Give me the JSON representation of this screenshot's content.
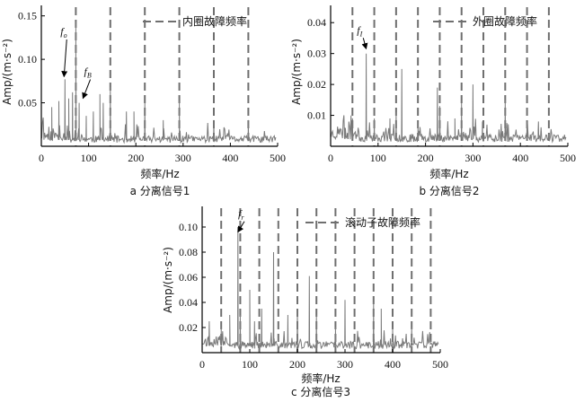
{
  "colors": {
    "signal": "#7a7a7a",
    "marker": "#6f6f6f",
    "axis": "#000000",
    "background": "#ffffff"
  },
  "chart_data": [
    {
      "id": "a",
      "type": "line",
      "caption": "a 分离信号1",
      "xlabel": "频率/Hz",
      "ylabel": "Amp/(m·s⁻²)",
      "xlim": [
        0,
        500
      ],
      "ylim": [
        0,
        0.16
      ],
      "xticks": [
        0,
        100,
        200,
        300,
        400,
        500
      ],
      "yticks": [
        0.05,
        0.1,
        0.15
      ],
      "ytick_labels": [
        "0.05",
        "0.10",
        "0.15"
      ],
      "legend": {
        "label": "内圈故障频率",
        "position": "top-right"
      },
      "fault_lines": [
        73,
        146,
        219,
        292,
        365,
        438
      ],
      "noise_level": 0.012,
      "noise_seed": 11,
      "peaks": [
        {
          "x": 22,
          "y": 0.045
        },
        {
          "x": 37,
          "y": 0.052
        },
        {
          "x": 50,
          "y": 0.077
        },
        {
          "x": 58,
          "y": 0.055
        },
        {
          "x": 66,
          "y": 0.062
        },
        {
          "x": 73,
          "y": 0.143
        },
        {
          "x": 80,
          "y": 0.05
        },
        {
          "x": 95,
          "y": 0.035
        },
        {
          "x": 110,
          "y": 0.04
        },
        {
          "x": 124,
          "y": 0.06
        },
        {
          "x": 131,
          "y": 0.05
        },
        {
          "x": 146,
          "y": 0.068
        },
        {
          "x": 180,
          "y": 0.04
        },
        {
          "x": 196,
          "y": 0.04
        },
        {
          "x": 219,
          "y": 0.05
        },
        {
          "x": 258,
          "y": 0.03
        },
        {
          "x": 292,
          "y": 0.052
        },
        {
          "x": 365,
          "y": 0.03
        },
        {
          "x": 438,
          "y": 0.03
        }
      ],
      "annotations": [
        {
          "text": "f",
          "sub": "o",
          "x": 48,
          "y": 0.128,
          "ax": 48,
          "ay": 0.08
        },
        {
          "text": "f",
          "sub": "B",
          "x": 98,
          "y": 0.082,
          "ax": 88,
          "ay": 0.055
        }
      ]
    },
    {
      "id": "b",
      "type": "line",
      "caption": "b 分离信号2",
      "xlabel": "频率/Hz",
      "ylabel": "Amp/(m·s⁻²)",
      "xlim": [
        0,
        500
      ],
      "ylim": [
        0,
        0.045
      ],
      "xticks": [
        0,
        100,
        200,
        300,
        400,
        500
      ],
      "yticks": [
        0.01,
        0.02,
        0.03,
        0.04
      ],
      "ytick_labels": [
        "0.01",
        "0.02",
        "0.03",
        "0.04"
      ],
      "legend": {
        "label": "外圈故障频率",
        "position": "top-right"
      },
      "fault_lines": [
        46,
        92,
        138,
        184,
        230,
        276,
        322,
        368,
        414,
        460
      ],
      "noise_level": 0.004,
      "noise_seed": 23,
      "peaks": [
        {
          "x": 30,
          "y": 0.006
        },
        {
          "x": 46,
          "y": 0.009
        },
        {
          "x": 75,
          "y": 0.03
        },
        {
          "x": 92,
          "y": 0.009
        },
        {
          "x": 125,
          "y": 0.009
        },
        {
          "x": 138,
          "y": 0.011
        },
        {
          "x": 150,
          "y": 0.025
        },
        {
          "x": 184,
          "y": 0.008
        },
        {
          "x": 225,
          "y": 0.019
        },
        {
          "x": 230,
          "y": 0.013
        },
        {
          "x": 262,
          "y": 0.009
        },
        {
          "x": 276,
          "y": 0.014
        },
        {
          "x": 300,
          "y": 0.02
        },
        {
          "x": 320,
          "y": 0.008
        },
        {
          "x": 368,
          "y": 0.015
        },
        {
          "x": 414,
          "y": 0.008
        },
        {
          "x": 438,
          "y": 0.008
        },
        {
          "x": 460,
          "y": 0.004
        }
      ],
      "annotations": [
        {
          "text": "f",
          "sub": "I",
          "x": 63,
          "y": 0.0365,
          "ax": 75,
          "ay": 0.0315
        }
      ]
    },
    {
      "id": "c",
      "type": "line",
      "caption": "c 分离信号3",
      "xlabel": "频率/Hz",
      "ylabel": "Amp/(m·s⁻²)",
      "xlim": [
        0,
        500
      ],
      "ylim": [
        0,
        0.115
      ],
      "xticks": [
        0,
        100,
        200,
        300,
        400,
        500
      ],
      "yticks": [
        0.02,
        0.04,
        0.06,
        0.08,
        0.1
      ],
      "ytick_labels": [
        "0.02",
        "0.04",
        "0.06",
        "0.08",
        "0.10"
      ],
      "legend": {
        "label": "滚动子故障频率",
        "position": "top-right"
      },
      "fault_lines": [
        40,
        80,
        120,
        160,
        200,
        240,
        280,
        320,
        360,
        400,
        440,
        480
      ],
      "noise_level": 0.009,
      "noise_seed": 37,
      "peaks": [
        {
          "x": 15,
          "y": 0.025
        },
        {
          "x": 40,
          "y": 0.02
        },
        {
          "x": 58,
          "y": 0.03
        },
        {
          "x": 75,
          "y": 0.1
        },
        {
          "x": 80,
          "y": 0.03
        },
        {
          "x": 100,
          "y": 0.05
        },
        {
          "x": 110,
          "y": 0.025
        },
        {
          "x": 125,
          "y": 0.035
        },
        {
          "x": 150,
          "y": 0.08
        },
        {
          "x": 180,
          "y": 0.03
        },
        {
          "x": 200,
          "y": 0.035
        },
        {
          "x": 225,
          "y": 0.061
        },
        {
          "x": 240,
          "y": 0.03
        },
        {
          "x": 280,
          "y": 0.02
        },
        {
          "x": 300,
          "y": 0.042
        },
        {
          "x": 360,
          "y": 0.04
        },
        {
          "x": 376,
          "y": 0.035
        },
        {
          "x": 400,
          "y": 0.02
        },
        {
          "x": 440,
          "y": 0.02
        }
      ],
      "annotations": [
        {
          "text": "f",
          "sub": "r",
          "x": 83,
          "y": 0.108,
          "ax": 75,
          "ay": 0.096
        }
      ]
    }
  ]
}
